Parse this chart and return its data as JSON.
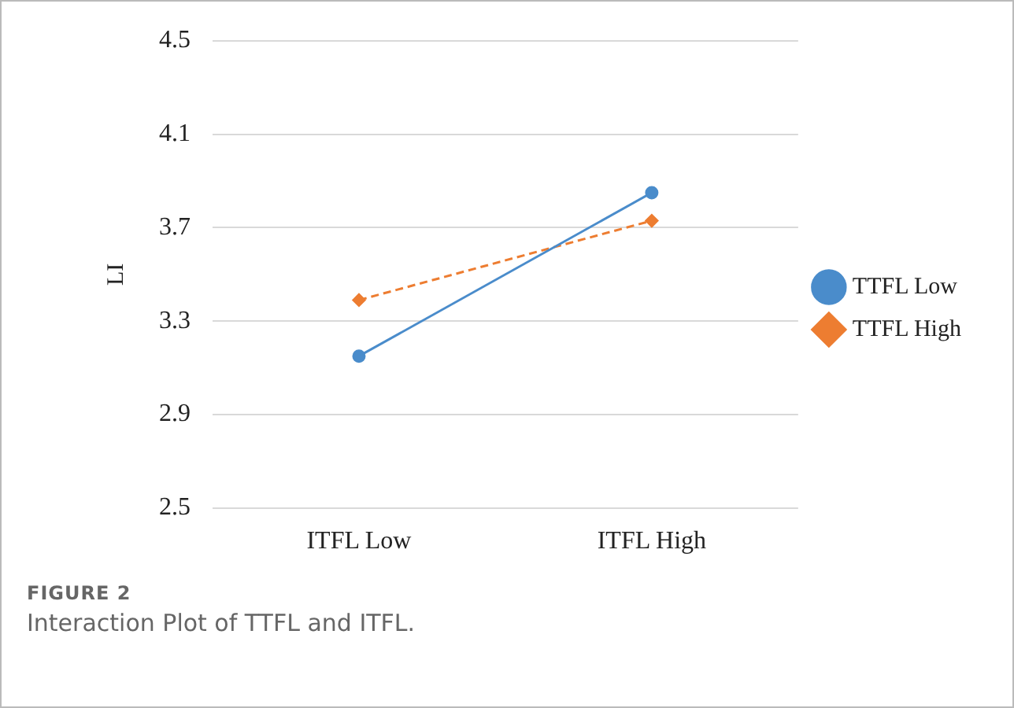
{
  "chart_data": {
    "type": "line",
    "ylabel": "LI",
    "categories": [
      "ITFL Low",
      "ITFL High"
    ],
    "series": [
      {
        "name": "TTFL Low",
        "color": "#4a8ccb",
        "values": [
          3.15,
          3.85
        ],
        "marker": "circle",
        "line_style": "solid"
      },
      {
        "name": "TTFL High",
        "color": "#ed7d31",
        "values": [
          3.39,
          3.73
        ],
        "marker": "diamond",
        "line_style": "dashed"
      }
    ],
    "ylim": [
      2.5,
      4.5
    ],
    "yticks": [
      2.5,
      2.9,
      3.3,
      3.7,
      4.1,
      4.5
    ],
    "grid": "y",
    "legend": "right",
    "annotations": [
      "FIGURE 2",
      "Interaction Plot of TTFL and ITFL."
    ]
  }
}
